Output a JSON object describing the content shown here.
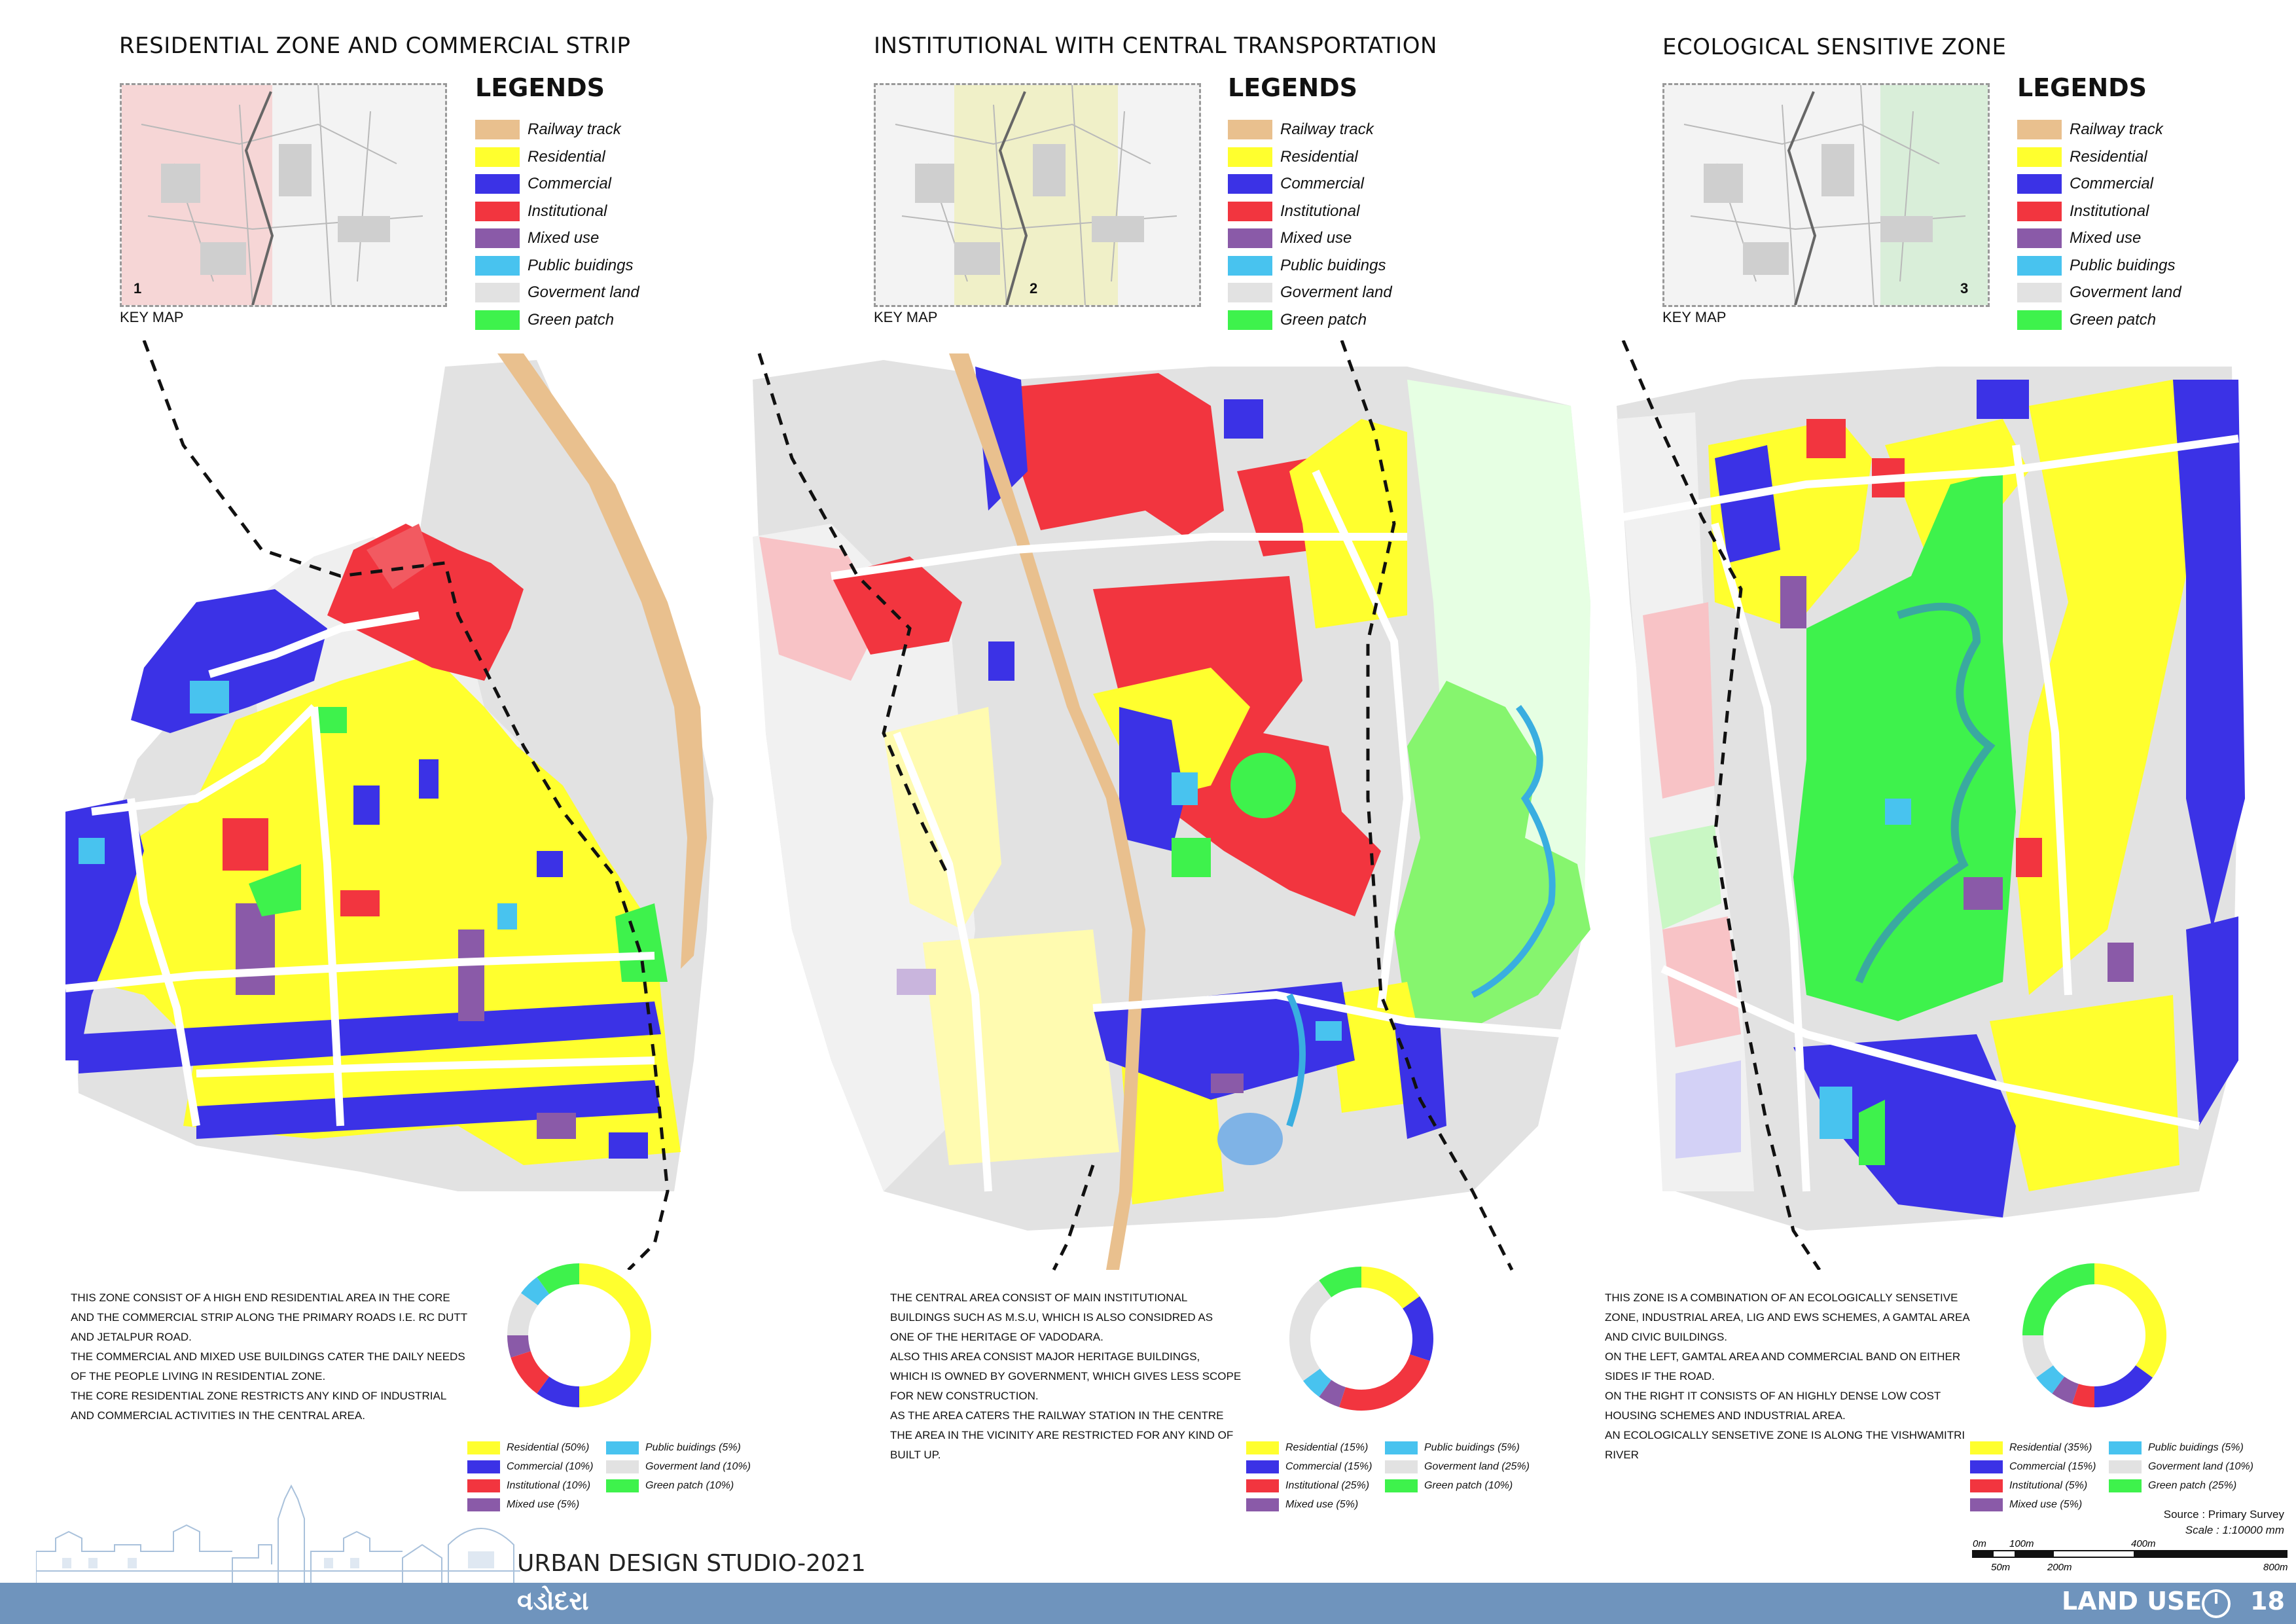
{
  "colors": {
    "railway": "#e9c08e",
    "residential": "#ffff2e",
    "commercial": "#3b32e6",
    "institutional": "#f2353f",
    "mixed": "#8a5aa8",
    "public": "#48c3ef",
    "government": "#e2e2e2",
    "green": "#3ef24c",
    "footer": "#6f94bd"
  },
  "legend_items": [
    {
      "key": "railway",
      "label": "Railway track"
    },
    {
      "key": "residential",
      "label": "Residential"
    },
    {
      "key": "commercial",
      "label": "Commercial"
    },
    {
      "key": "institutional",
      "label": "Institutional"
    },
    {
      "key": "mixed",
      "label": "Mixed use"
    },
    {
      "key": "public",
      "label": "Public buidings"
    },
    {
      "key": "government",
      "label": "Goverment land"
    },
    {
      "key": "green",
      "label": "Green patch"
    }
  ],
  "legend_title": "LEGENDS",
  "keymap_label": "KEY MAP",
  "panels": [
    {
      "title": "RESIDENTIAL ZONE AND COMMERCIAL STRIP",
      "keymap_number": "1",
      "description": [
        "THIS ZONE CONSIST OF A HIGH END RESIDENTIAL AREA IN THE CORE",
        "AND THE COMMERCIAL STRIP ALONG THE PRIMARY ROADS I.E. RC DUTT",
        "AND JETALPUR ROAD.",
        "THE COMMERCIAL AND MIXED USE BUILDINGS CATER THE DAILY NEEDS",
        "OF THE PEOPLE LIVING IN RESIDENTIAL ZONE.",
        "THE CORE RESIDENTIAL ZONE RESTRICTS ANY KIND OF INDUSTRIAL",
        "AND COMMERCIAL ACTIVITIES IN THE CENTRAL AREA."
      ],
      "pie_legend": [
        {
          "key": "residential",
          "label": "Residential (50%)"
        },
        {
          "key": "public",
          "label": "Public buidings (5%)"
        },
        {
          "key": "commercial",
          "label": "Commercial  (10%)"
        },
        {
          "key": "government",
          "label": "Goverment land (10%)"
        },
        {
          "key": "institutional",
          "label": "Institutional  (10%)"
        },
        {
          "key": "green",
          "label": "Green patch (10%)"
        },
        {
          "key": "mixed",
          "label": "Mixed use  (5%)"
        }
      ],
      "donut": [
        {
          "key": "residential",
          "value": 50
        },
        {
          "key": "commercial",
          "value": 10
        },
        {
          "key": "institutional",
          "value": 10
        },
        {
          "key": "mixed",
          "value": 5
        },
        {
          "key": "government",
          "value": 10
        },
        {
          "key": "public",
          "value": 5
        },
        {
          "key": "green",
          "value": 10
        }
      ]
    },
    {
      "title": "INSTITUTIONAL WITH CENTRAL TRANSPORTATION",
      "keymap_number": "2",
      "description": [
        "THE CENTRAL AREA CONSIST OF MAIN INSTITUTIONAL",
        "BUILDINGS SUCH AS M.S.U, WHICH IS ALSO CONSIDRED AS",
        "ONE OF THE HERITAGE OF VADODARA.",
        "ALSO THIS AREA CONSIST MAJOR HERITAGE BUILDINGS,",
        "WHICH IS OWNED BY GOVERNMENT, WHICH GIVES LESS SCOPE",
        "FOR NEW CONSTRUCTION.",
        "AS THE AREA CATERS THE RAILWAY STATION IN THE CENTRE",
        "THE AREA IN THE VICINITY ARE RESTRICTED FOR ANY KIND OF",
        "BUILT UP."
      ],
      "pie_legend": [
        {
          "key": "residential",
          "label": "Residential (15%)"
        },
        {
          "key": "public",
          "label": "Public buidings (5%)"
        },
        {
          "key": "commercial",
          "label": "Commercial  (15%)"
        },
        {
          "key": "government",
          "label": "Goverment land (25%)"
        },
        {
          "key": "institutional",
          "label": "Institutional  (25%)"
        },
        {
          "key": "green",
          "label": "Green patch (10%)"
        },
        {
          "key": "mixed",
          "label": "Mixed use  (5%)"
        }
      ],
      "donut": [
        {
          "key": "residential",
          "value": 15
        },
        {
          "key": "commercial",
          "value": 15
        },
        {
          "key": "institutional",
          "value": 25
        },
        {
          "key": "mixed",
          "value": 5
        },
        {
          "key": "public",
          "value": 5
        },
        {
          "key": "government",
          "value": 25
        },
        {
          "key": "green",
          "value": 10
        }
      ]
    },
    {
      "title": "ECOLOGICAL SENSITIVE ZONE",
      "keymap_number": "3",
      "description": [
        "THIS ZONE IS A COMBINATION OF AN ECOLOGICALLY SENSETIVE",
        "ZONE, INDUSTRIAL AREA, LIG AND EWS SCHEMES, A GAMTAL AREA",
        "AND CIVIC BUILDINGS.",
        "ON THE LEFT, GAMTAL AREA AND COMMERCIAL BAND ON EITHER",
        "SIDES IF THE ROAD.",
        "ON THE RIGHT IT CONSISTS OF AN HIGHLY DENSE LOW COST",
        "HOUSING SCHEMES AND INDUSTRIAL AREA.",
        "AN ECOLOGICALLY SENSETIVE ZONE IS ALONG THE VISHWAMITRI",
        "RIVER"
      ],
      "pie_legend": [
        {
          "key": "residential",
          "label": "Residential (35%)"
        },
        {
          "key": "public",
          "label": "Public buidings (5%)"
        },
        {
          "key": "commercial",
          "label": "Commercial  (15%)"
        },
        {
          "key": "government",
          "label": "Goverment land (10%)"
        },
        {
          "key": "institutional",
          "label": "Institutional  (5%)"
        },
        {
          "key": "green",
          "label": "Green patch (25%)"
        },
        {
          "key": "mixed",
          "label": "Mixed use  (5%)"
        }
      ],
      "donut": [
        {
          "key": "residential",
          "value": 35
        },
        {
          "key": "commercial",
          "value": 15
        },
        {
          "key": "institutional",
          "value": 5
        },
        {
          "key": "mixed",
          "value": 5
        },
        {
          "key": "public",
          "value": 5
        },
        {
          "key": "government",
          "value": 10
        },
        {
          "key": "green",
          "value": 25
        }
      ]
    }
  ],
  "source": "Source : Primary Survey",
  "scale": "Scale :   1:10000 mm",
  "scalebar_top": [
    "0m",
    "100m",
    "400m"
  ],
  "scalebar_bottom": [
    "50m",
    "200m",
    "800m"
  ],
  "studio": "URBAN DESIGN STUDIO-2021",
  "city_gujarati": "વડોદરા",
  "sheet_title": "LAND USE",
  "page_number": "18"
}
